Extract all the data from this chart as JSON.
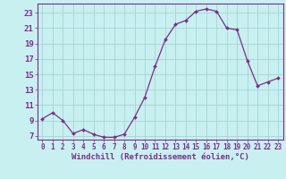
{
  "x": [
    0,
    1,
    2,
    3,
    4,
    5,
    6,
    7,
    8,
    9,
    10,
    11,
    12,
    13,
    14,
    15,
    16,
    17,
    18,
    19,
    20,
    21,
    22,
    23
  ],
  "y": [
    9.2,
    10.0,
    9.0,
    7.3,
    7.8,
    7.2,
    6.8,
    6.8,
    7.2,
    9.4,
    12.0,
    16.0,
    19.5,
    21.5,
    22.0,
    23.2,
    23.5,
    23.2,
    21.0,
    20.8,
    16.8,
    13.5,
    14.0,
    14.5
  ],
  "line_color": "#7b2d8b",
  "marker": "D",
  "marker_size": 2.0,
  "bg_color": "#c8f0f0",
  "grid_color": "#a8d4d4",
  "xlabel": "Windchill (Refroidissement éolien,°C)",
  "xlim": [
    -0.5,
    23.5
  ],
  "ylim": [
    6.5,
    24.2
  ],
  "yticks": [
    7,
    9,
    11,
    13,
    15,
    17,
    19,
    21,
    23
  ],
  "xticks": [
    0,
    1,
    2,
    3,
    4,
    5,
    6,
    7,
    8,
    9,
    10,
    11,
    12,
    13,
    14,
    15,
    16,
    17,
    18,
    19,
    20,
    21,
    22,
    23
  ],
  "tick_color": "#7b2d8b",
  "label_color": "#7b2d8b",
  "spine_color": "#7b2d8b",
  "xlabel_fontsize": 6.5,
  "ytick_fontsize": 6.5,
  "xtick_fontsize": 5.5
}
